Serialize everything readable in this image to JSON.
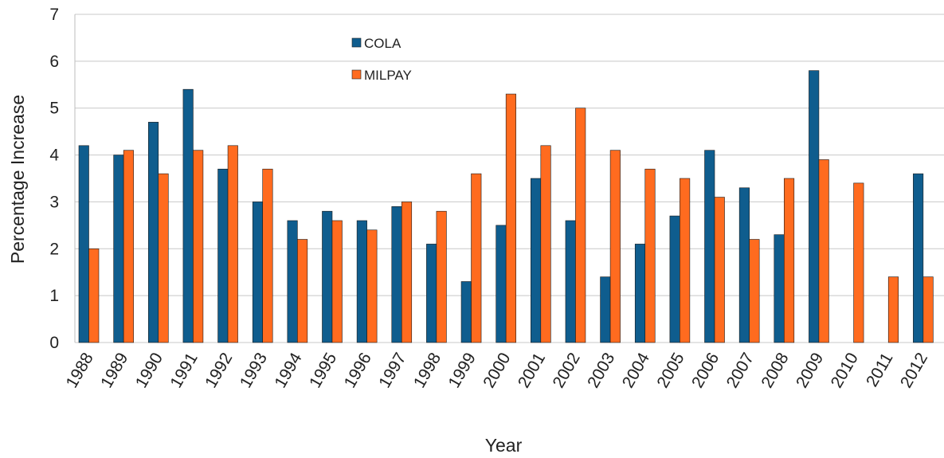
{
  "chart_data": {
    "type": "bar",
    "xlabel": "Year",
    "ylabel": "Percentage Increase",
    "ylim": [
      0,
      7
    ],
    "yticks": [
      "0",
      "1",
      "2",
      "3",
      "4",
      "5",
      "6",
      "7"
    ],
    "grid": true,
    "legend_position": "top-center",
    "categories": [
      "1988",
      "1989",
      "1990",
      "1991",
      "1992",
      "1993",
      "1994",
      "1995",
      "1996",
      "1997",
      "1998",
      "1999",
      "2000",
      "2001",
      "2002",
      "2003",
      "2004",
      "2005",
      "2006",
      "2007",
      "2008",
      "2009",
      "2010",
      "2011",
      "2012"
    ],
    "series": [
      {
        "name": "COLA",
        "color": "#0f5d8e",
        "values": [
          4.2,
          4.0,
          4.7,
          5.4,
          3.7,
          3.0,
          2.6,
          2.8,
          2.6,
          2.9,
          2.1,
          1.3,
          2.5,
          3.5,
          2.6,
          1.4,
          2.1,
          2.7,
          4.1,
          3.3,
          2.3,
          5.8,
          0,
          0,
          3.6
        ]
      },
      {
        "name": "MILPAY",
        "color": "#ff6b1f",
        "values": [
          2.0,
          4.1,
          3.6,
          4.1,
          4.2,
          3.7,
          2.2,
          2.6,
          2.4,
          3.0,
          2.8,
          3.6,
          5.3,
          4.2,
          5.0,
          4.1,
          3.7,
          3.5,
          3.1,
          2.2,
          3.5,
          3.9,
          3.4,
          1.4,
          1.4
        ]
      }
    ]
  }
}
